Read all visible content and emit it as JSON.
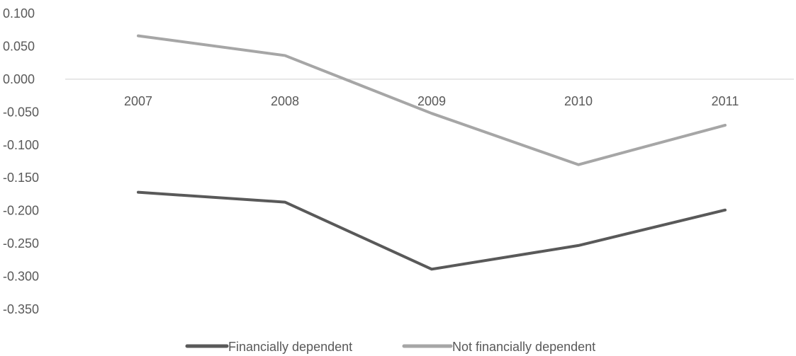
{
  "chart_data": {
    "type": "line",
    "categories": [
      "2007",
      "2008",
      "2009",
      "2010",
      "2011"
    ],
    "series": [
      {
        "name": "Financially dependent",
        "values": [
          -0.172,
          -0.187,
          -0.289,
          -0.253,
          -0.199
        ],
        "color": "#595959"
      },
      {
        "name": "Not financially dependent",
        "values": [
          0.066,
          0.036,
          -0.052,
          -0.13,
          -0.07
        ],
        "color": "#a6a6a6"
      }
    ],
    "ylim": [
      -0.35,
      0.1
    ],
    "yticks": [
      "0.100",
      "0.050",
      "0.000",
      "-0.050",
      "-0.100",
      "-0.150",
      "-0.200",
      "-0.250",
      "-0.300",
      "-0.350"
    ],
    "legend_position": "bottom",
    "grid": false,
    "axis_line_color": "#d9d9d9"
  }
}
